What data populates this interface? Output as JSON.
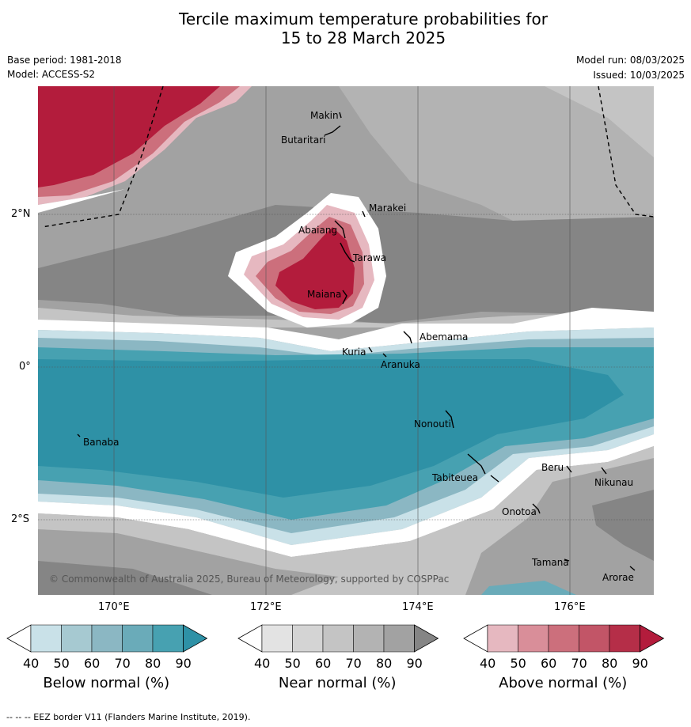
{
  "title_line1": "Tercile maximum temperature probabilities for",
  "title_line2": "15 to 28 March 2025",
  "base_period": "Base period: 1981-2018",
  "model": "Model: ACCESS-S2",
  "model_run": "Model run: 08/03/2025",
  "issued": "Issued: 10/03/2025",
  "lat_labels": [
    "2°N",
    "0°",
    "2°S"
  ],
  "lon_labels": [
    "170°E",
    "172°E",
    "174°E",
    "176°E"
  ],
  "places": [
    "Makin",
    "Butaritari",
    "Marakei",
    "Abaiang",
    "Tarawa",
    "Maiana",
    "Abemama",
    "Kuria",
    "Aranuka",
    "Nonouti",
    "Banaba",
    "Beru",
    "Tabiteuea",
    "Nikunau",
    "Onotoa",
    "Tamana",
    "Arorae"
  ],
  "copyright": "© Commonwealth of Australia 2025, Bureau of Meteorology, supported by COSPPac",
  "colorbars": [
    {
      "name": "Below normal (%)",
      "ticks": [
        "40",
        "50",
        "60",
        "70",
        "80",
        "90"
      ],
      "colors": [
        "#ffffff",
        "#c9e1e8",
        "#a6c9d1",
        "#8bb7c3",
        "#6aabb9",
        "#47a1b1",
        "#2e91a6"
      ]
    },
    {
      "name": "Near normal (%)",
      "ticks": [
        "40",
        "50",
        "60",
        "70",
        "80",
        "90"
      ],
      "colors": [
        "#ffffff",
        "#e3e3e3",
        "#d4d4d4",
        "#c4c4c4",
        "#b3b3b3",
        "#a2a2a2",
        "#858585"
      ]
    },
    {
      "name": "Above normal (%)",
      "ticks": [
        "40",
        "50",
        "60",
        "70",
        "80",
        "90"
      ],
      "colors": [
        "#ffffff",
        "#e6b8c0",
        "#d98e99",
        "#cc6f7c",
        "#c25567",
        "#b52e48",
        "#b31c3c"
      ]
    }
  ],
  "footnote": "--  --  -- EEZ border V11 (Flanders Marine Institute, 2019)."
}
